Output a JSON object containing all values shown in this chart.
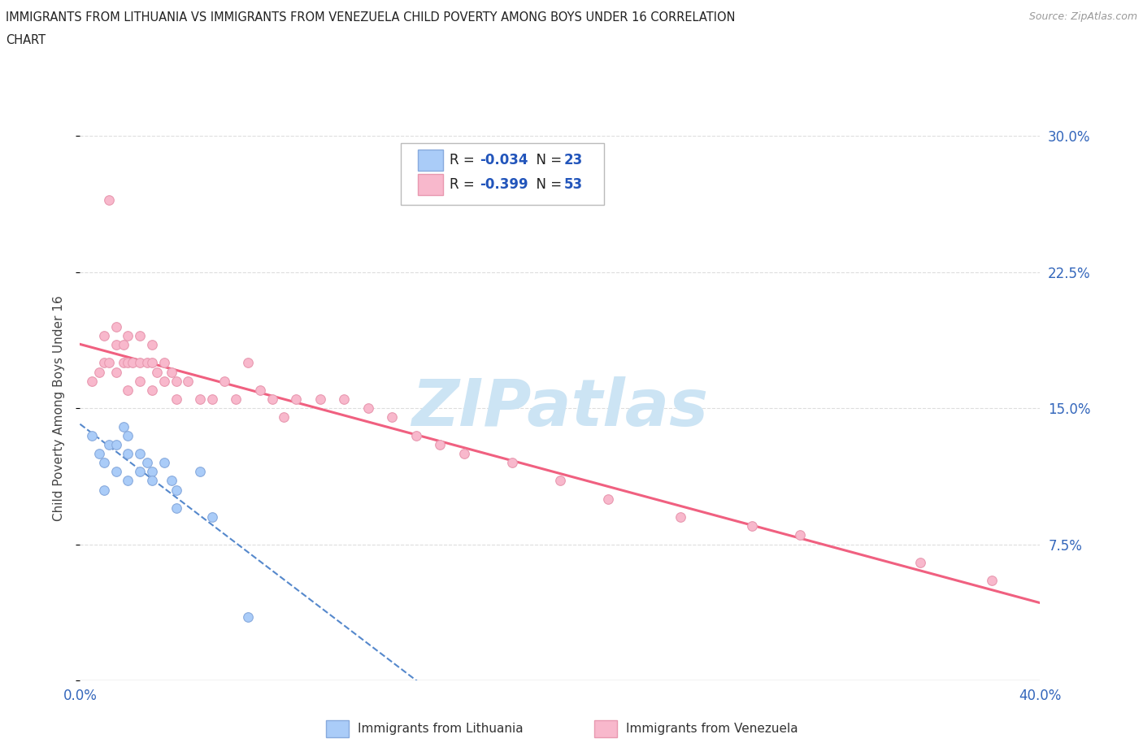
{
  "title_line1": "IMMIGRANTS FROM LITHUANIA VS IMMIGRANTS FROM VENEZUELA CHILD POVERTY AMONG BOYS UNDER 16 CORRELATION",
  "title_line2": "CHART",
  "source_text": "Source: ZipAtlas.com",
  "ylabel": "Child Poverty Among Boys Under 16",
  "xmin": 0.0,
  "xmax": 0.4,
  "ymin": 0.0,
  "ymax": 0.3,
  "yticks": [
    0.0,
    0.075,
    0.15,
    0.225,
    0.3
  ],
  "right_ytick_labels": [
    "",
    "7.5%",
    "15.0%",
    "22.5%",
    "30.0%"
  ],
  "xticks": [
    0.0,
    0.05,
    0.1,
    0.15,
    0.2,
    0.25,
    0.3,
    0.35,
    0.4
  ],
  "xtick_labels": [
    "0.0%",
    "",
    "",
    "",
    "",
    "",
    "",
    "",
    "40.0%"
  ],
  "lithuania_color": "#aaccf8",
  "venezuela_color": "#f8b8cc",
  "lithuania_edge_color": "#88aadd",
  "venezuela_edge_color": "#e899b0",
  "lithuania_line_color": "#5588cc",
  "venezuela_line_color": "#f06080",
  "watermark_text": "ZIPatlas",
  "watermark_color": "#cce4f4",
  "legend_R_color": "#2255bb",
  "grid_color": "#dddddd",
  "R_lithuania": -0.034,
  "N_lithuania": 23,
  "R_venezuela": -0.399,
  "N_venezuela": 53,
  "lithuania_x": [
    0.005,
    0.008,
    0.01,
    0.01,
    0.012,
    0.015,
    0.015,
    0.018,
    0.02,
    0.02,
    0.02,
    0.025,
    0.025,
    0.028,
    0.03,
    0.03,
    0.035,
    0.038,
    0.04,
    0.04,
    0.05,
    0.055,
    0.07
  ],
  "lithuania_y": [
    0.135,
    0.125,
    0.12,
    0.105,
    0.13,
    0.13,
    0.115,
    0.14,
    0.135,
    0.125,
    0.11,
    0.125,
    0.115,
    0.12,
    0.115,
    0.11,
    0.12,
    0.11,
    0.105,
    0.095,
    0.115,
    0.09,
    0.035
  ],
  "venezuela_x": [
    0.005,
    0.008,
    0.01,
    0.01,
    0.012,
    0.012,
    0.015,
    0.015,
    0.015,
    0.018,
    0.018,
    0.02,
    0.02,
    0.02,
    0.022,
    0.025,
    0.025,
    0.025,
    0.028,
    0.03,
    0.03,
    0.03,
    0.032,
    0.035,
    0.035,
    0.038,
    0.04,
    0.04,
    0.045,
    0.05,
    0.055,
    0.06,
    0.065,
    0.07,
    0.075,
    0.08,
    0.085,
    0.09,
    0.1,
    0.11,
    0.12,
    0.13,
    0.14,
    0.15,
    0.16,
    0.18,
    0.2,
    0.22,
    0.25,
    0.28,
    0.3,
    0.35,
    0.38
  ],
  "venezuela_y": [
    0.165,
    0.17,
    0.19,
    0.175,
    0.265,
    0.175,
    0.195,
    0.185,
    0.17,
    0.185,
    0.175,
    0.19,
    0.175,
    0.16,
    0.175,
    0.19,
    0.175,
    0.165,
    0.175,
    0.185,
    0.175,
    0.16,
    0.17,
    0.175,
    0.165,
    0.17,
    0.165,
    0.155,
    0.165,
    0.155,
    0.155,
    0.165,
    0.155,
    0.175,
    0.16,
    0.155,
    0.145,
    0.155,
    0.155,
    0.155,
    0.15,
    0.145,
    0.135,
    0.13,
    0.125,
    0.12,
    0.11,
    0.1,
    0.09,
    0.085,
    0.08,
    0.065,
    0.055
  ]
}
